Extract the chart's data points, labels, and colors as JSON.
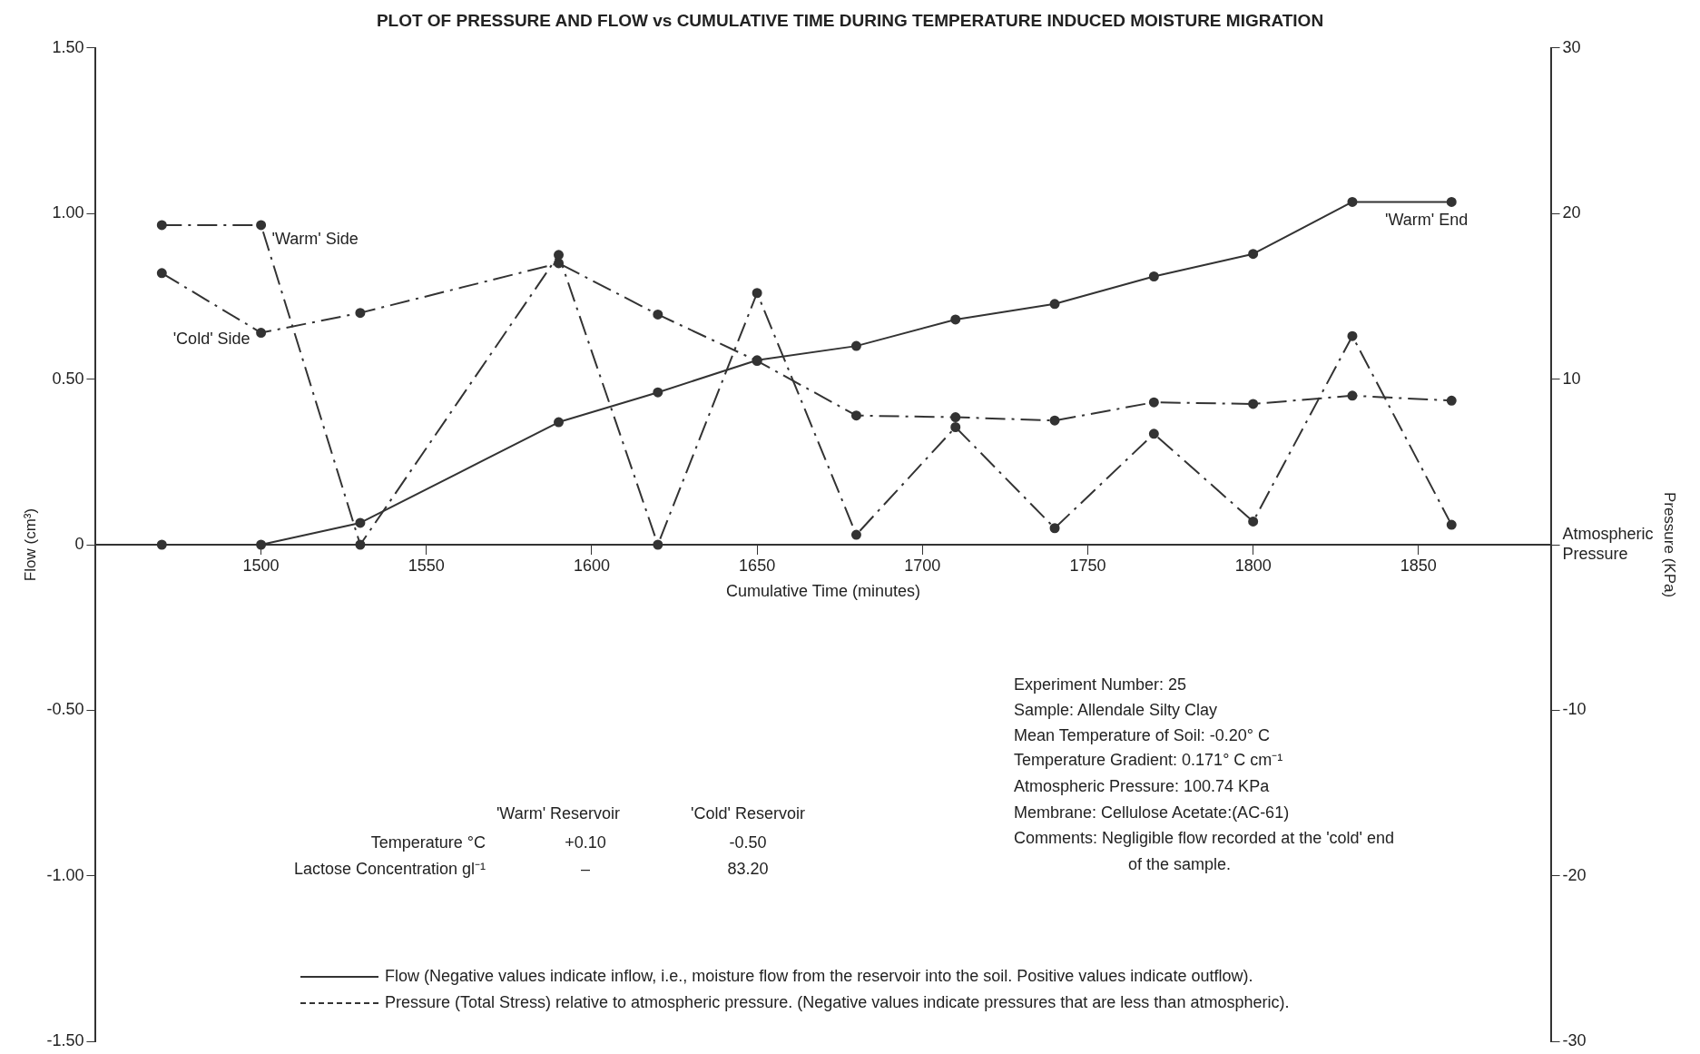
{
  "chart_data": {
    "type": "line",
    "title": "PLOT OF PRESSURE AND FLOW vs CUMULATIVE TIME DURING TEMPERATURE INDUCED MOISTURE MIGRATION",
    "xlabel": "Cumulative Time (minutes)",
    "ylabel": "Flow (cm³)",
    "y2label": "Pressure (KPa)",
    "x": [
      1470,
      1500,
      1530,
      1590,
      1620,
      1650,
      1680,
      1710,
      1740,
      1770,
      1800,
      1830,
      1860
    ],
    "series": [
      {
        "name": "Flow  (Negative values indicate inflow, i.e., moisture flow from the reservoir into the soil. Positive values indicate outflow).",
        "color": "#333333",
        "line_style": "solid",
        "values": [
          0,
          0,
          0.066,
          0.37,
          0.46,
          0.557,
          0.6,
          0.68,
          0.727,
          0.81,
          0.878,
          1.035,
          1.035
        ]
      },
      {
        "name": "'Warm' Side",
        "color": "#333333",
        "axis": "y2",
        "line_style": "dashed",
        "values": [
          19.3,
          19.3,
          0,
          17.5,
          0,
          15.2,
          0.6,
          7.1,
          1,
          6.7,
          1.4,
          12.6,
          1.2
        ]
      },
      {
        "name": "'Cold' Side",
        "color": "#333333",
        "axis": "y2",
        "line_style": "dashed",
        "values": [
          16.4,
          12.8,
          14,
          17,
          13.9,
          11.1,
          7.8,
          7.7,
          7.5,
          8.6,
          8.5,
          9,
          8.7
        ]
      }
    ],
    "xlim": [
      1450,
      1890
    ],
    "xticks": [
      1500,
      1550,
      1600,
      1650,
      1700,
      1750,
      1800,
      1850
    ],
    "ylim": [
      -1.5,
      1.5
    ],
    "yticks": [
      {
        "value": -1.5,
        "label": "-1.50"
      },
      {
        "value": -1,
        "label": "-1.00"
      },
      {
        "value": -0.5,
        "label": "-0.50"
      },
      0,
      {
        "value": 0.5,
        "label": "0.50"
      },
      {
        "value": 1,
        "label": "1.00"
      },
      {
        "value": 1.5,
        "label": "1.50"
      }
    ],
    "y2lim": [
      -30,
      30
    ],
    "y2ticks": [
      -30,
      -20,
      -10,
      {
        "value": 0,
        "label": "Atmospheric Pressure"
      },
      10,
      20,
      30
    ],
    "marker": "circle",
    "grid": false,
    "legend": "bottom",
    "annotations": [
      {
        "text": "'Warm' End",
        "x": 1860,
        "y": 1.035
      },
      "Pressure  (Total Stress) relative to atmospheric pressure. (Negative values indicate pressures that are less than atmospheric).",
      "Experiment Number: 25",
      "Sample: Allendale Silty Clay",
      "Mean Temperature of Soil: -0.20° C",
      "Temperature Gradient: 0.171° C cm⁻¹",
      "Atmospheric Pressure: 100.74 KPa",
      "Membrane: Cellulose Acetate:(AC-61)",
      "Comments: Negligible flow recorded at the 'cold' end",
      "of the sample.",
      "'Warm' Reservoir",
      "'Cold' Reservoir",
      "Temperature °C",
      "+0.10",
      "-0.50",
      "Lactose Concentration gl⁻¹",
      "–",
      "83.20"
    ]
  }
}
